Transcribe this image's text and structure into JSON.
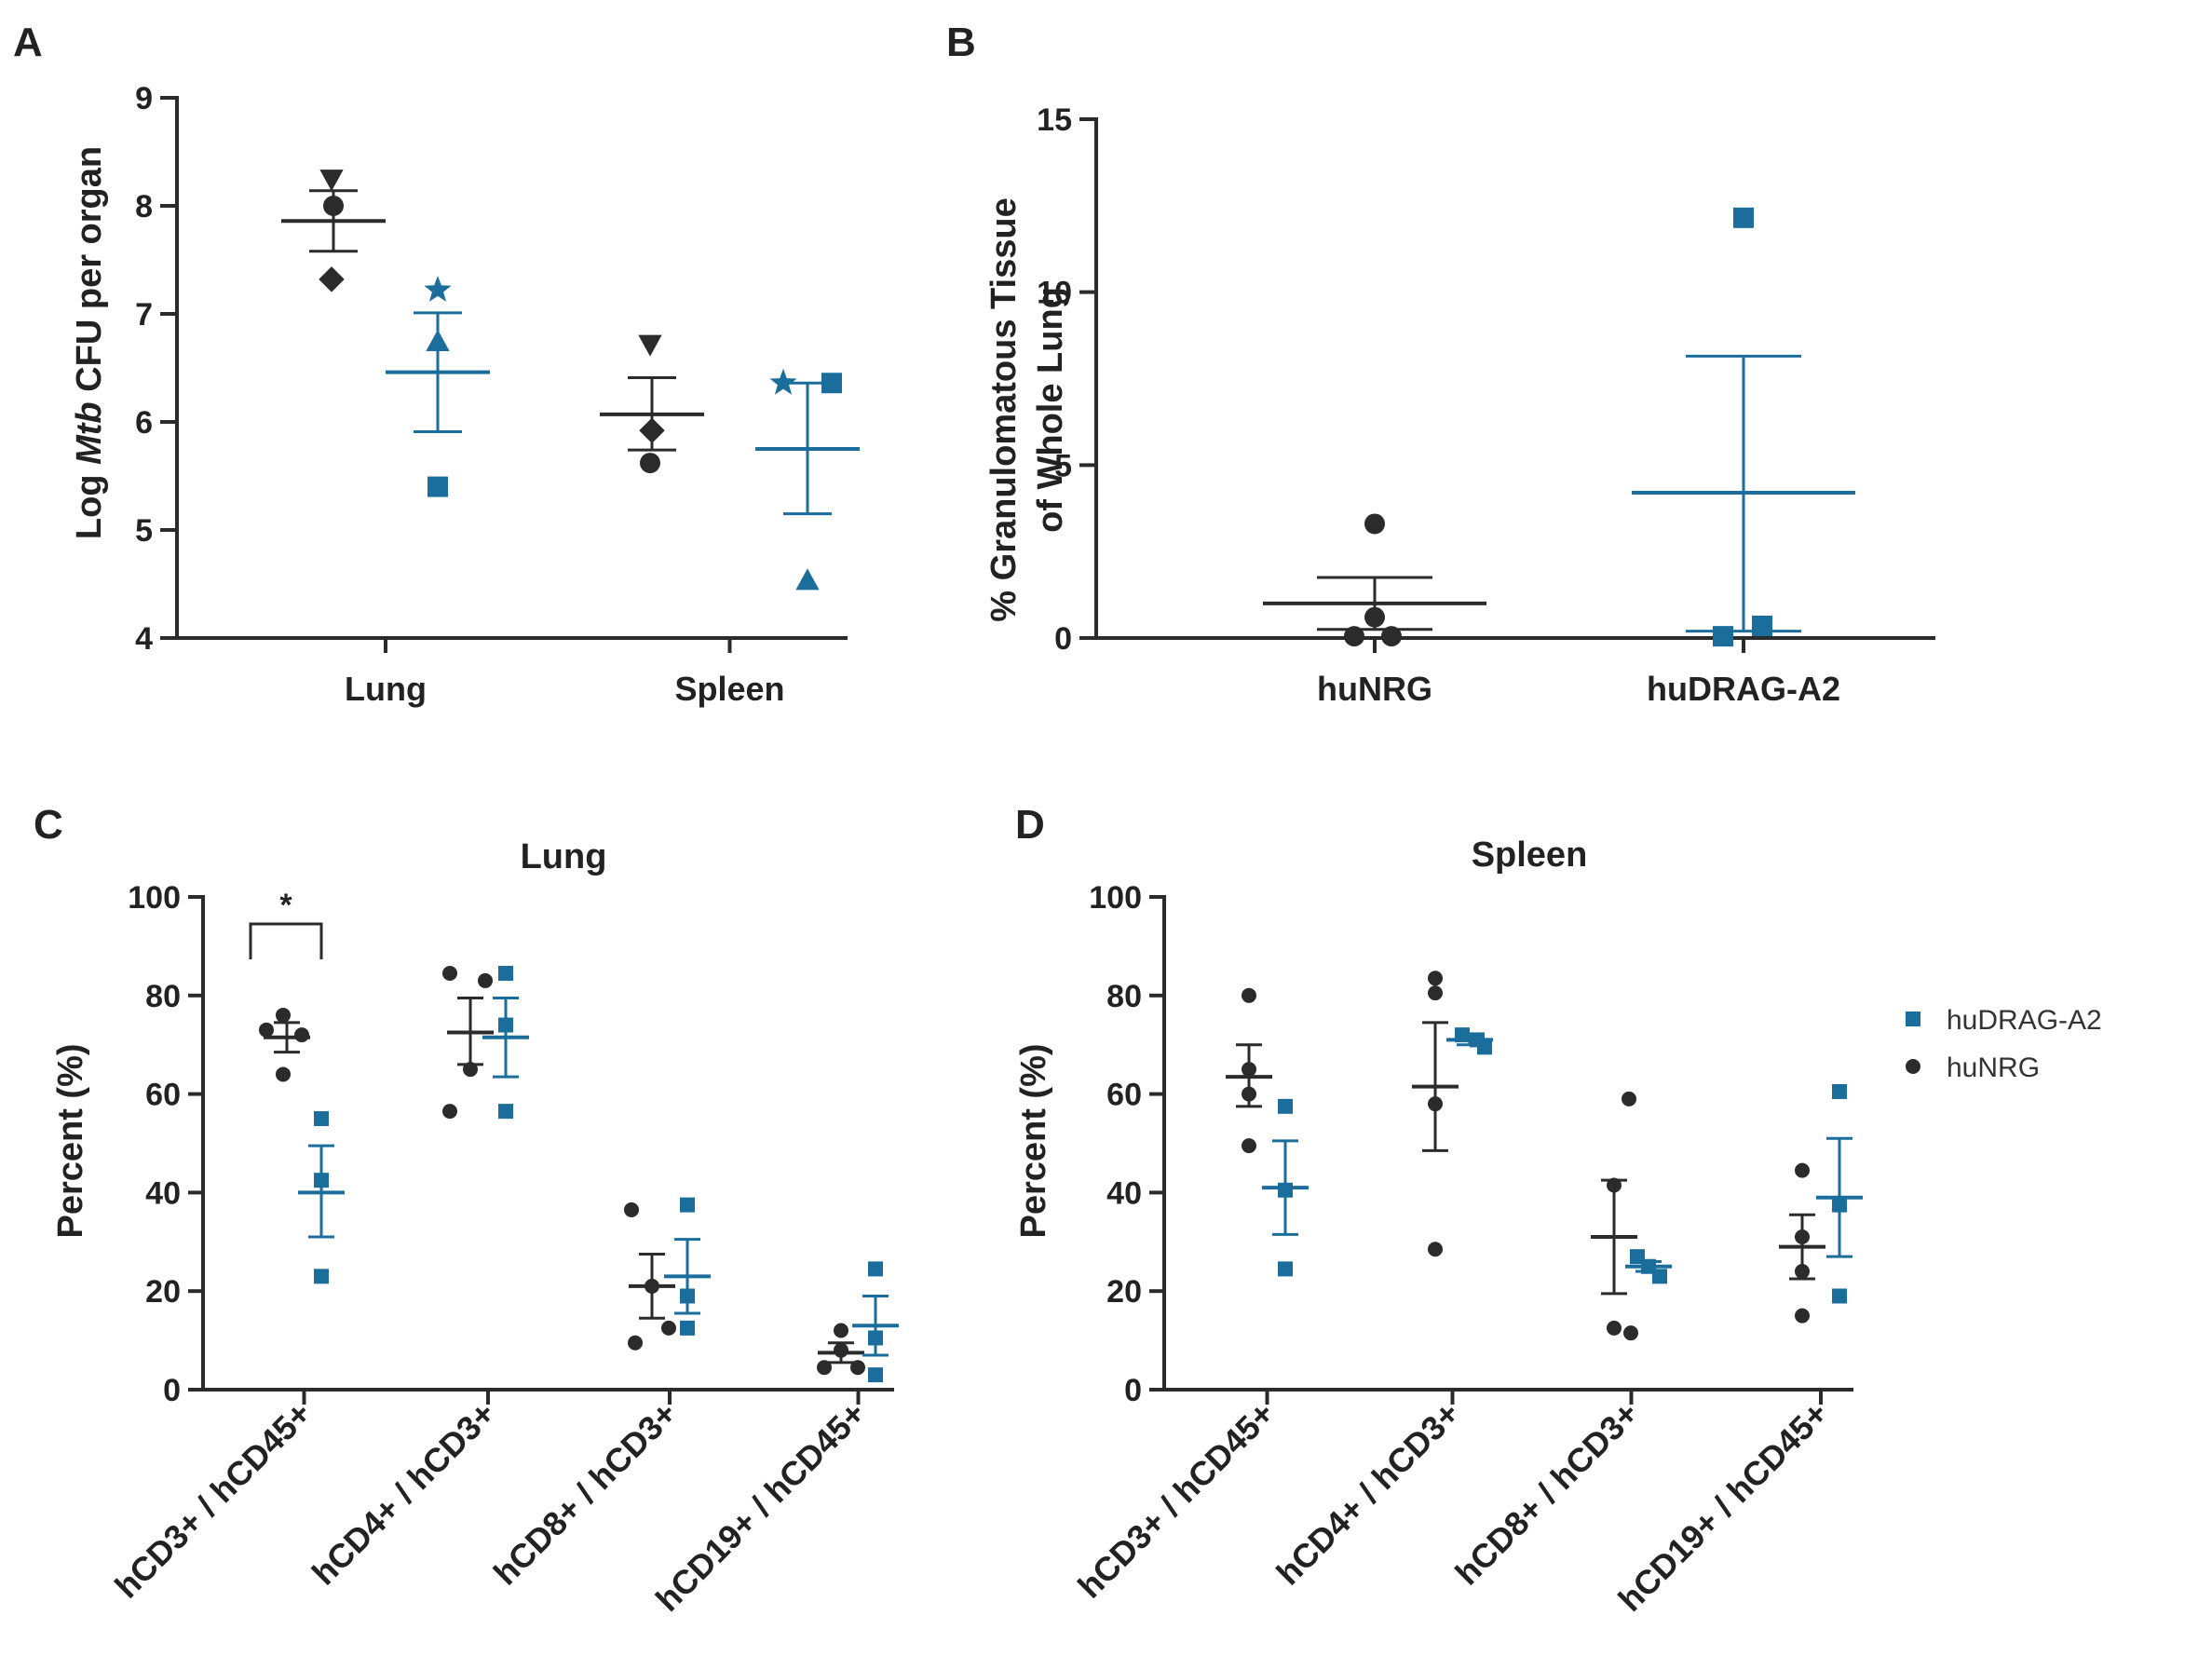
{
  "colors": {
    "dark": "#2b2b2b",
    "blue": "#1b6e9c"
  },
  "legend": {
    "items": [
      {
        "label": "huDRAG-A2",
        "color": "#1b6e9c",
        "marker": "square"
      },
      {
        "label": "huNRG",
        "color": "#2b2b2b",
        "marker": "circle"
      }
    ]
  },
  "chart_data": [
    {
      "panel": "A",
      "type": "scatter",
      "title": "",
      "ylabel_pre": "Log ",
      "ylabel_italic": "Mtb",
      "ylabel_post": " CFU per organ",
      "ylim": [
        4,
        9
      ],
      "yticks": [
        "4",
        "5",
        "6",
        "7",
        "8",
        "9"
      ],
      "categories": [
        "Lung",
        "Spleen"
      ],
      "series": [
        {
          "name": "huNRG",
          "color": "dark",
          "points": [
            {
              "cat": 0,
              "y": 8.25,
              "marker": "tri-down"
            },
            {
              "cat": 0,
              "y": 8.0,
              "marker": "circle"
            },
            {
              "cat": 0,
              "y": 7.32,
              "marker": "diamond"
            },
            {
              "cat": 1,
              "y": 6.72,
              "marker": "tri-down"
            },
            {
              "cat": 1,
              "y": 5.92,
              "marker": "diamond"
            },
            {
              "cat": 1,
              "y": 5.62,
              "marker": "circle"
            }
          ],
          "summary": [
            {
              "cat": 0,
              "mean": 7.86,
              "upper": 8.14,
              "lower": 7.58
            },
            {
              "cat": 1,
              "mean": 6.07,
              "upper": 6.41,
              "lower": 5.74
            }
          ]
        },
        {
          "name": "huDRAG-A2",
          "color": "blue",
          "points": [
            {
              "cat": 0,
              "y": 7.22,
              "marker": "star"
            },
            {
              "cat": 0,
              "y": 6.74,
              "marker": "tri-up"
            },
            {
              "cat": 0,
              "y": 5.4,
              "marker": "square"
            },
            {
              "cat": 1,
              "y": 6.36,
              "marker": "star"
            },
            {
              "cat": 1,
              "y": 6.36,
              "marker": "square"
            },
            {
              "cat": 1,
              "y": 4.53,
              "marker": "tri-up"
            }
          ],
          "summary": [
            {
              "cat": 0,
              "mean": 6.46,
              "upper": 7.01,
              "lower": 5.91
            },
            {
              "cat": 1,
              "mean": 5.75,
              "upper": 6.36,
              "lower": 5.15
            }
          ]
        }
      ]
    },
    {
      "panel": "B",
      "type": "scatter",
      "title": "",
      "ylabel_line1": "% Granulomatous Tissue",
      "ylabel_line2": "of Whole Lung",
      "ylim": [
        0,
        15
      ],
      "yticks": [
        "0",
        "5",
        "10",
        "15"
      ],
      "categories": [
        "huNRG",
        "huDRAG-A2"
      ],
      "series": [
        {
          "name": "huNRG",
          "color": "dark",
          "points": [
            {
              "cat": 0,
              "y": 3.3,
              "marker": "circle"
            },
            {
              "cat": 0,
              "y": 0.6,
              "marker": "circle"
            },
            {
              "cat": 0,
              "y": 0.05,
              "marker": "circle"
            },
            {
              "cat": 0,
              "y": 0.05,
              "marker": "circle"
            }
          ],
          "summary": [
            {
              "cat": 0,
              "mean": 1.0,
              "upper": 1.75,
              "lower": 0.25
            }
          ]
        },
        {
          "name": "huDRAG-A2",
          "color": "blue",
          "points": [
            {
              "cat": 1,
              "y": 12.15,
              "marker": "square"
            },
            {
              "cat": 1,
              "y": 0.35,
              "marker": "square"
            },
            {
              "cat": 1,
              "y": 0.05,
              "marker": "square"
            }
          ],
          "summary": [
            {
              "cat": 1,
              "mean": 4.2,
              "upper": 8.15,
              "lower": 0.2
            }
          ]
        }
      ]
    },
    {
      "panel": "C",
      "type": "scatter",
      "title": "Lung",
      "ylabel": "Percent (%)",
      "ylim": [
        0,
        100
      ],
      "yticks": [
        "0",
        "20",
        "40",
        "60",
        "80",
        "100"
      ],
      "categories": [
        "hCD3+ / hCD45+",
        "hCD4+ / hCD3+",
        "hCD8+ / hCD3+",
        "hCD19+ / hCD45+"
      ],
      "significance": {
        "cat": 0,
        "label": "*"
      },
      "series": [
        {
          "name": "huNRG",
          "color": "dark",
          "points": [
            {
              "cat": 0,
              "y": 76,
              "marker": "circle"
            },
            {
              "cat": 0,
              "y": 73,
              "marker": "circle"
            },
            {
              "cat": 0,
              "y": 72,
              "marker": "circle"
            },
            {
              "cat": 0,
              "y": 64,
              "marker": "circle"
            },
            {
              "cat": 1,
              "y": 84.5,
              "marker": "circle"
            },
            {
              "cat": 1,
              "y": 83,
              "marker": "circle"
            },
            {
              "cat": 1,
              "y": 65,
              "marker": "circle"
            },
            {
              "cat": 1,
              "y": 56.5,
              "marker": "circle"
            },
            {
              "cat": 2,
              "y": 36.5,
              "marker": "circle"
            },
            {
              "cat": 2,
              "y": 21,
              "marker": "circle"
            },
            {
              "cat": 2,
              "y": 12.5,
              "marker": "circle"
            },
            {
              "cat": 2,
              "y": 9.5,
              "marker": "circle"
            },
            {
              "cat": 3,
              "y": 12,
              "marker": "circle"
            },
            {
              "cat": 3,
              "y": 8,
              "marker": "circle"
            },
            {
              "cat": 3,
              "y": 4.5,
              "marker": "circle"
            },
            {
              "cat": 3,
              "y": 4.5,
              "marker": "circle"
            }
          ],
          "summary": [
            {
              "cat": 0,
              "mean": 71.5,
              "upper": 74.5,
              "lower": 68.5
            },
            {
              "cat": 1,
              "mean": 72.5,
              "upper": 79.5,
              "lower": 66
            },
            {
              "cat": 2,
              "mean": 21,
              "upper": 27.5,
              "lower": 14.5
            },
            {
              "cat": 3,
              "mean": 7.5,
              "upper": 9.5,
              "lower": 5.5
            }
          ]
        },
        {
          "name": "huDRAG-A2",
          "color": "blue",
          "points": [
            {
              "cat": 0,
              "y": 55,
              "marker": "square"
            },
            {
              "cat": 0,
              "y": 42.5,
              "marker": "square"
            },
            {
              "cat": 0,
              "y": 23,
              "marker": "square"
            },
            {
              "cat": 1,
              "y": 84.5,
              "marker": "square"
            },
            {
              "cat": 1,
              "y": 74,
              "marker": "square"
            },
            {
              "cat": 1,
              "y": 56.5,
              "marker": "square"
            },
            {
              "cat": 2,
              "y": 37.5,
              "marker": "square"
            },
            {
              "cat": 2,
              "y": 19,
              "marker": "square"
            },
            {
              "cat": 2,
              "y": 12.5,
              "marker": "square"
            },
            {
              "cat": 3,
              "y": 24.5,
              "marker": "square"
            },
            {
              "cat": 3,
              "y": 10.5,
              "marker": "square"
            },
            {
              "cat": 3,
              "y": 3,
              "marker": "square"
            }
          ],
          "summary": [
            {
              "cat": 0,
              "mean": 40,
              "upper": 49.5,
              "lower": 31
            },
            {
              "cat": 1,
              "mean": 71.5,
              "upper": 79.5,
              "lower": 63.5
            },
            {
              "cat": 2,
              "mean": 23,
              "upper": 30.5,
              "lower": 15.5
            },
            {
              "cat": 3,
              "mean": 13,
              "upper": 19,
              "lower": 7
            }
          ]
        }
      ]
    },
    {
      "panel": "D",
      "type": "scatter",
      "title": "Spleen",
      "ylabel": "Percent (%)",
      "ylim": [
        0,
        100
      ],
      "yticks": [
        "0",
        "20",
        "40",
        "60",
        "80",
        "100"
      ],
      "categories": [
        "hCD3+ / hCD45+",
        "hCD4+ / hCD3+",
        "hCD8+ / hCD3+",
        "hCD19+ / hCD45+"
      ],
      "series": [
        {
          "name": "huNRG",
          "color": "dark",
          "points": [
            {
              "cat": 0,
              "y": 80,
              "marker": "circle"
            },
            {
              "cat": 0,
              "y": 65,
              "marker": "circle"
            },
            {
              "cat": 0,
              "y": 60,
              "marker": "circle"
            },
            {
              "cat": 0,
              "y": 49.5,
              "marker": "circle"
            },
            {
              "cat": 1,
              "y": 83.5,
              "marker": "circle"
            },
            {
              "cat": 1,
              "y": 80.5,
              "marker": "circle"
            },
            {
              "cat": 1,
              "y": 58,
              "marker": "circle"
            },
            {
              "cat": 1,
              "y": 28.5,
              "marker": "circle"
            },
            {
              "cat": 2,
              "y": 59,
              "marker": "circle"
            },
            {
              "cat": 2,
              "y": 41.5,
              "marker": "circle"
            },
            {
              "cat": 2,
              "y": 12.5,
              "marker": "circle"
            },
            {
              "cat": 2,
              "y": 11.5,
              "marker": "circle"
            },
            {
              "cat": 3,
              "y": 44.5,
              "marker": "circle"
            },
            {
              "cat": 3,
              "y": 31,
              "marker": "circle"
            },
            {
              "cat": 3,
              "y": 24,
              "marker": "circle"
            },
            {
              "cat": 3,
              "y": 15,
              "marker": "circle"
            }
          ],
          "summary": [
            {
              "cat": 0,
              "mean": 63.5,
              "upper": 70,
              "lower": 57.5
            },
            {
              "cat": 1,
              "mean": 61.5,
              "upper": 74.5,
              "lower": 48.5
            },
            {
              "cat": 2,
              "mean": 31,
              "upper": 42.5,
              "lower": 19.5
            },
            {
              "cat": 3,
              "mean": 29,
              "upper": 35.5,
              "lower": 22.5
            }
          ]
        },
        {
          "name": "huDRAG-A2",
          "color": "blue",
          "points": [
            {
              "cat": 0,
              "y": 57.5,
              "marker": "square"
            },
            {
              "cat": 0,
              "y": 40.5,
              "marker": "square"
            },
            {
              "cat": 0,
              "y": 24.5,
              "marker": "square"
            },
            {
              "cat": 1,
              "y": 72,
              "marker": "square"
            },
            {
              "cat": 1,
              "y": 71,
              "marker": "square"
            },
            {
              "cat": 1,
              "y": 69.5,
              "marker": "square"
            },
            {
              "cat": 2,
              "y": 27,
              "marker": "square"
            },
            {
              "cat": 2,
              "y": 25,
              "marker": "square"
            },
            {
              "cat": 2,
              "y": 23,
              "marker": "square"
            },
            {
              "cat": 3,
              "y": 60.5,
              "marker": "square"
            },
            {
              "cat": 3,
              "y": 37.5,
              "marker": "square"
            },
            {
              "cat": 3,
              "y": 19,
              "marker": "square"
            }
          ],
          "summary": [
            {
              "cat": 0,
              "mean": 41,
              "upper": 50.5,
              "lower": 31.5
            },
            {
              "cat": 1,
              "mean": 71,
              "upper": 72,
              "lower": 70
            },
            {
              "cat": 2,
              "mean": 25,
              "upper": 26,
              "lower": 24
            },
            {
              "cat": 3,
              "mean": 39,
              "upper": 51,
              "lower": 27
            }
          ]
        }
      ]
    }
  ]
}
